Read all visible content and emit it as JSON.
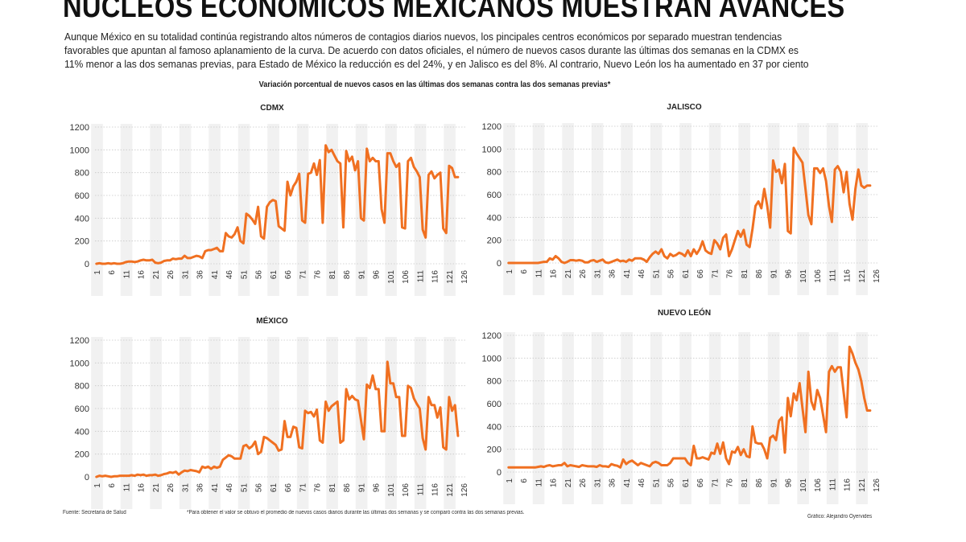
{
  "header": {
    "title": "NÚCLEOS ECONÓMICOS MEXICANOS MUESTRAN AVANCES",
    "intro_lines": [
      "Aunque México en su totalidad continúa registrando altos números de contagios diarios nuevos, los pincipales centros económicos por separado muestran tendencias",
      "favorables que apuntan al famoso aplanamiento de la curva. De acuerdo con datos oficiales, el número de nuevos casos durante las últimas dos semanas en la CDMX es",
      "11% menor a las dos semanas previas, para Estado de México la reducción es del 24%, y en Jalisco es del 8%. Al contrario, Nuevo León los ha aumentado en 37 por ciento"
    ],
    "subtitle": "Variación porcentual de nuevos casos en las últimas dos semanas contra las dos semanas previas*"
  },
  "colors": {
    "line": "#f07021",
    "stripe": "#f1f1f1",
    "grid": "#c8c8c8"
  },
  "footer": {
    "source": "Fuente: Secretaría de Salud",
    "note": "*Para obtener el valor se obtuvo el promedio de nuevos casos diarios durante las últimas dos semanas y se comparó contra las dos semanas previas.",
    "credit": "Gráfico: Alejandro Oyervides"
  },
  "chart_data": [
    {
      "type": "line",
      "title": "CDMX",
      "ylim": [
        0,
        1200
      ],
      "yticks": [
        "0",
        "200",
        "400",
        "600",
        "800",
        "1000",
        "1200"
      ],
      "xticks": [
        "1",
        "6",
        "11",
        "16",
        "21",
        "26",
        "31",
        "36",
        "41",
        "46",
        "51",
        "56",
        "61",
        "66",
        "71",
        "76",
        "81",
        "86",
        "91",
        "96",
        "101",
        "106",
        "111",
        "116",
        "121",
        "126"
      ],
      "grid": true,
      "values": [
        0,
        5,
        0,
        0,
        5,
        0,
        5,
        0,
        0,
        5,
        15,
        20,
        20,
        15,
        20,
        30,
        35,
        30,
        30,
        35,
        10,
        5,
        10,
        25,
        30,
        30,
        45,
        40,
        45,
        45,
        70,
        50,
        50,
        60,
        70,
        65,
        50,
        110,
        120,
        120,
        130,
        140,
        110,
        110,
        270,
        240,
        230,
        260,
        320,
        200,
        180,
        440,
        420,
        390,
        350,
        500,
        240,
        220,
        500,
        540,
        560,
        550,
        330,
        310,
        290,
        720,
        600,
        680,
        720,
        790,
        380,
        360,
        790,
        800,
        880,
        780,
        910,
        360,
        1040,
        980,
        1000,
        950,
        900,
        880,
        320,
        990,
        900,
        940,
        820,
        900,
        400,
        380,
        1010,
        900,
        930,
        900,
        900,
        480,
        360,
        970,
        970,
        900,
        850,
        880,
        320,
        310,
        900,
        930,
        850,
        810,
        760,
        300,
        230,
        780,
        810,
        750,
        780,
        800,
        310,
        270,
        860,
        840,
        760,
        760
      ]
    },
    {
      "type": "line",
      "title": "JALISCO",
      "ylim": [
        0,
        1200
      ],
      "yticks": [
        "0",
        "200",
        "400",
        "600",
        "800",
        "1000",
        "1200"
      ],
      "xticks": [
        "1",
        "6",
        "11",
        "16",
        "21",
        "26",
        "31",
        "36",
        "41",
        "46",
        "51",
        "56",
        "61",
        "66",
        "71",
        "76",
        "81",
        "86",
        "91",
        "96",
        "101",
        "106",
        "111",
        "116",
        "121",
        "126"
      ],
      "grid": true,
      "values": [
        0,
        0,
        0,
        0,
        0,
        0,
        0,
        0,
        0,
        0,
        0,
        5,
        10,
        10,
        40,
        30,
        60,
        40,
        10,
        0,
        10,
        25,
        25,
        20,
        25,
        20,
        5,
        5,
        20,
        25,
        10,
        20,
        30,
        5,
        0,
        10,
        20,
        30,
        15,
        20,
        10,
        30,
        20,
        40,
        40,
        40,
        30,
        10,
        50,
        80,
        100,
        80,
        120,
        60,
        40,
        80,
        60,
        70,
        90,
        80,
        60,
        110,
        60,
        120,
        80,
        120,
        190,
        110,
        90,
        80,
        200,
        170,
        120,
        220,
        250,
        60,
        120,
        200,
        280,
        230,
        290,
        160,
        140,
        300,
        500,
        540,
        480,
        650,
        500,
        310,
        900,
        800,
        820,
        700,
        870,
        280,
        260,
        1010,
        960,
        920,
        880,
        650,
        420,
        340,
        830,
        830,
        790,
        830,
        720,
        500,
        360,
        820,
        850,
        800,
        620,
        800,
        520,
        380,
        650,
        820,
        680,
        660,
        680,
        680
      ]
    },
    {
      "type": "line",
      "title": "MÉXICO",
      "ylim": [
        0,
        1200
      ],
      "yticks": [
        "0",
        "200",
        "400",
        "600",
        "800",
        "1000",
        "1200"
      ],
      "xticks": [
        "1",
        "6",
        "11",
        "16",
        "21",
        "26",
        "31",
        "36",
        "41",
        "46",
        "51",
        "56",
        "61",
        "66",
        "71",
        "76",
        "81",
        "86",
        "91",
        "96",
        "101",
        "106",
        "111",
        "116",
        "121",
        "126"
      ],
      "grid": true,
      "values": [
        0,
        10,
        5,
        10,
        5,
        0,
        5,
        5,
        10,
        10,
        10,
        10,
        15,
        10,
        20,
        15,
        20,
        10,
        15,
        15,
        20,
        10,
        15,
        25,
        30,
        40,
        35,
        45,
        20,
        40,
        55,
        50,
        60,
        55,
        50,
        40,
        90,
        80,
        90,
        70,
        90,
        80,
        90,
        150,
        170,
        190,
        180,
        160,
        160,
        160,
        270,
        280,
        250,
        270,
        310,
        200,
        220,
        350,
        340,
        320,
        300,
        280,
        230,
        240,
        490,
        350,
        350,
        440,
        430,
        260,
        250,
        580,
        560,
        570,
        530,
        590,
        320,
        300,
        660,
        580,
        620,
        640,
        660,
        300,
        320,
        770,
        680,
        710,
        680,
        670,
        500,
        330,
        810,
        780,
        890,
        770,
        770,
        400,
        400,
        1010,
        820,
        820,
        700,
        700,
        360,
        360,
        800,
        780,
        690,
        640,
        600,
        340,
        240,
        700,
        630,
        630,
        520,
        610,
        260,
        240,
        700,
        580,
        630,
        360
      ]
    },
    {
      "type": "line",
      "title": "NUEVO LEÓN",
      "ylim": [
        0,
        1200
      ],
      "yticks": [
        "0",
        "200",
        "400",
        "600",
        "800",
        "1000",
        "1200"
      ],
      "xticks": [
        "1",
        "6",
        "11",
        "16",
        "21",
        "26",
        "31",
        "36",
        "41",
        "46",
        "51",
        "56",
        "61",
        "66",
        "71",
        "76",
        "81",
        "86",
        "91",
        "96",
        "101",
        "106",
        "111",
        "116",
        "121",
        "126"
      ],
      "grid": true,
      "values": [
        40,
        40,
        40,
        40,
        40,
        40,
        40,
        40,
        40,
        40,
        45,
        50,
        45,
        55,
        60,
        50,
        55,
        60,
        60,
        80,
        50,
        60,
        55,
        50,
        45,
        60,
        55,
        50,
        50,
        50,
        45,
        60,
        50,
        50,
        45,
        70,
        60,
        55,
        40,
        110,
        70,
        90,
        100,
        80,
        60,
        80,
        70,
        60,
        50,
        80,
        90,
        80,
        60,
        60,
        60,
        80,
        120,
        120,
        120,
        120,
        120,
        80,
        60,
        230,
        120,
        120,
        130,
        120,
        110,
        170,
        160,
        250,
        160,
        260,
        120,
        70,
        180,
        170,
        220,
        150,
        200,
        140,
        130,
        400,
        260,
        250,
        250,
        200,
        120,
        300,
        320,
        280,
        450,
        480,
        170,
        650,
        490,
        690,
        630,
        780,
        560,
        350,
        880,
        620,
        550,
        720,
        650,
        500,
        350,
        880,
        930,
        880,
        920,
        920,
        700,
        480,
        1100,
        1040,
        960,
        900,
        800,
        650,
        540,
        540
      ]
    }
  ]
}
